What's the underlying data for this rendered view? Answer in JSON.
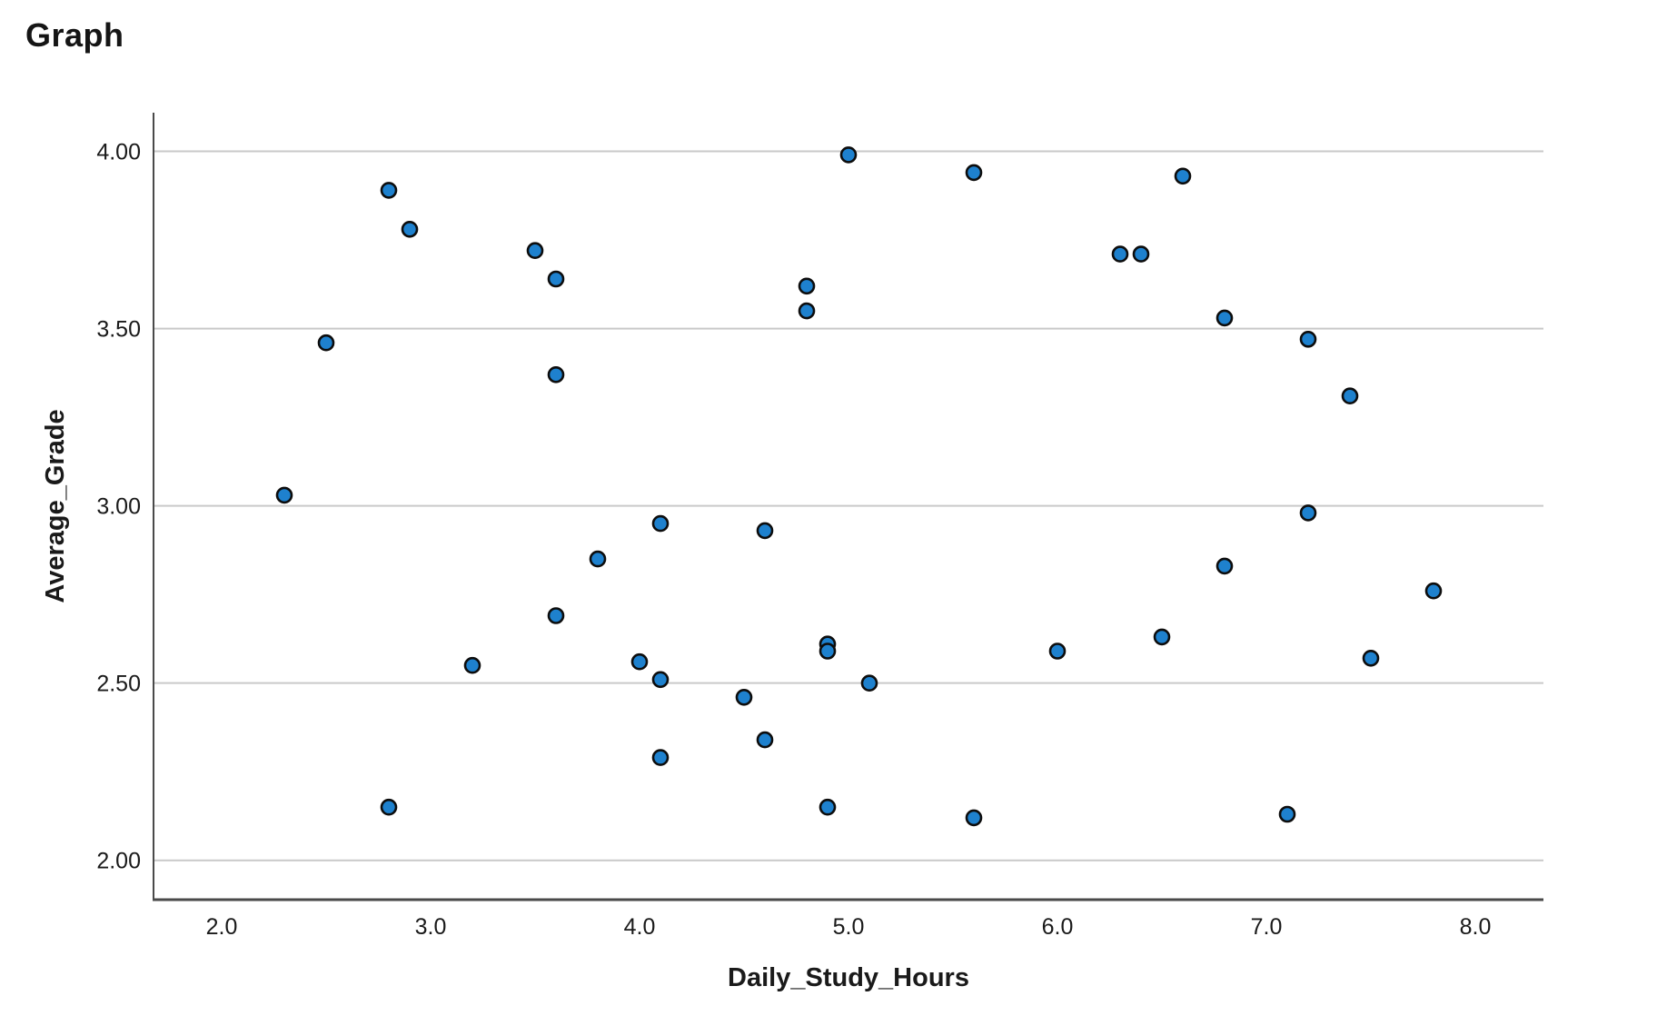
{
  "page": {
    "title": "Graph"
  },
  "colors": {
    "point_fill": "#1E81CE",
    "point_stroke": "#0d0d0d",
    "gridline": "#c9c9c9",
    "axis_line": "#4a4a4a",
    "text": "#1a1a1a",
    "background": "#ffffff"
  },
  "chart_data": {
    "type": "scatter",
    "title": "Graph",
    "xlabel": "Daily_Study_Hours",
    "ylabel": "Average_Grade",
    "x_ticks": [
      2.0,
      3.0,
      4.0,
      5.0,
      6.0,
      7.0,
      8.0
    ],
    "x_tick_labels": [
      "2.0",
      "3.0",
      "4.0",
      "5.0",
      "6.0",
      "7.0",
      "8.0"
    ],
    "y_ticks": [
      2.0,
      2.5,
      3.0,
      3.5,
      4.0
    ],
    "y_tick_labels": [
      "2.00",
      "2.50",
      "3.00",
      "3.50",
      "4.00"
    ],
    "xlim": [
      1.674,
      8.326
    ],
    "ylim": [
      1.889,
      4.109
    ],
    "grid": "horizontal-only",
    "legend": "none",
    "marker": {
      "shape": "circle",
      "radius_px": 8
    },
    "points": [
      [
        2.3,
        3.03
      ],
      [
        2.5,
        3.46
      ],
      [
        2.8,
        3.89
      ],
      [
        2.8,
        2.15
      ],
      [
        2.9,
        3.78
      ],
      [
        3.2,
        2.55
      ],
      [
        3.5,
        3.72
      ],
      [
        3.6,
        3.64
      ],
      [
        3.6,
        3.37
      ],
      [
        3.6,
        2.69
      ],
      [
        3.8,
        2.85
      ],
      [
        4.0,
        2.56
      ],
      [
        4.1,
        2.95
      ],
      [
        4.1,
        2.51
      ],
      [
        4.1,
        2.29
      ],
      [
        4.5,
        2.46
      ],
      [
        4.6,
        2.93
      ],
      [
        4.6,
        2.34
      ],
      [
        4.8,
        3.62
      ],
      [
        4.8,
        3.55
      ],
      [
        4.9,
        2.61
      ],
      [
        4.9,
        2.59
      ],
      [
        4.9,
        2.15
      ],
      [
        5.0,
        3.99
      ],
      [
        5.1,
        2.5
      ],
      [
        5.6,
        3.94
      ],
      [
        5.6,
        2.12
      ],
      [
        6.0,
        2.59
      ],
      [
        6.3,
        3.71
      ],
      [
        6.4,
        3.71
      ],
      [
        6.5,
        2.63
      ],
      [
        6.6,
        3.93
      ],
      [
        6.8,
        3.53
      ],
      [
        6.8,
        2.83
      ],
      [
        7.1,
        2.13
      ],
      [
        7.2,
        3.47
      ],
      [
        7.2,
        2.98
      ],
      [
        7.4,
        3.31
      ],
      [
        7.5,
        2.57
      ],
      [
        7.8,
        2.76
      ]
    ]
  }
}
